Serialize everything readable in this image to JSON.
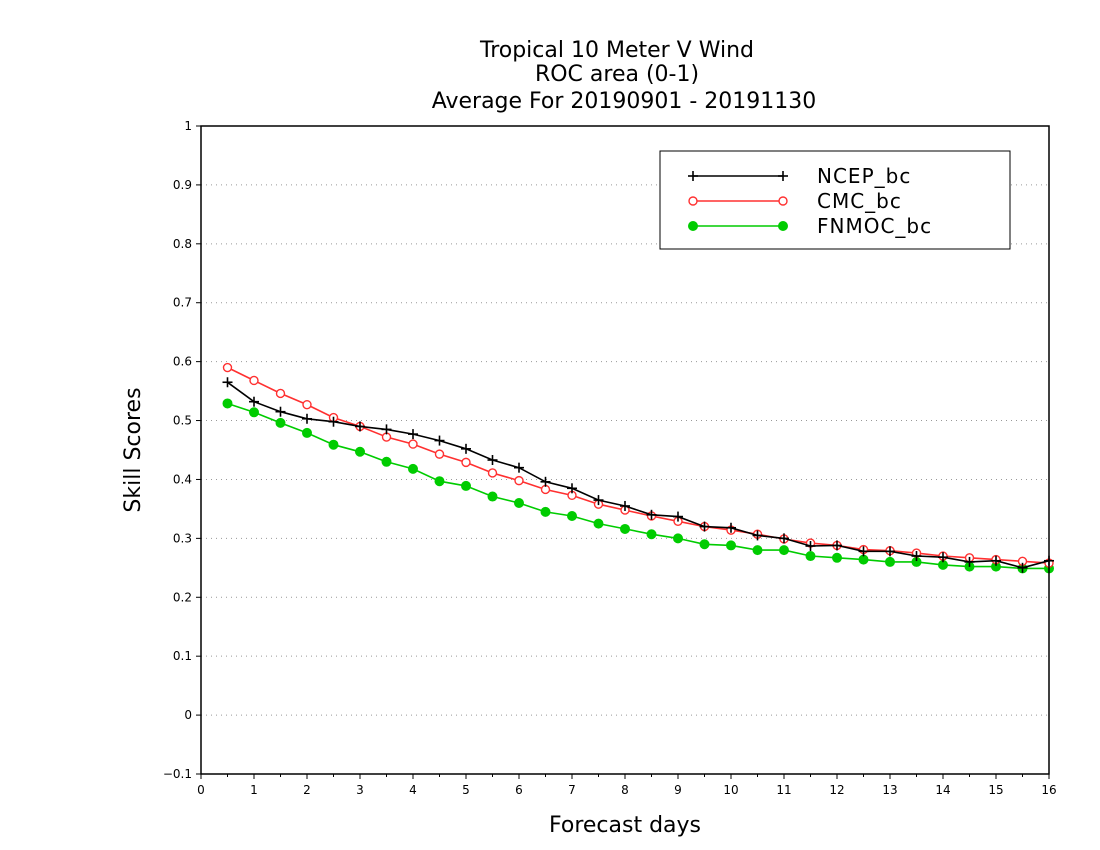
{
  "chart_data": {
    "type": "line",
    "title": "Tropical 10 Meter V Wind",
    "subtitle": "ROC area (0-1)",
    "subtitle2": "Average For 20190901 - 20191130",
    "xlabel": "Forecast days",
    "ylabel": "Skill Scores",
    "xlim": [
      0,
      16
    ],
    "ylim": [
      -0.1,
      1
    ],
    "x_ticks": [
      "0",
      "1",
      "2",
      "3",
      "4",
      "5",
      "6",
      "7",
      "8",
      "9",
      "10",
      "11",
      "12",
      "13",
      "14",
      "15",
      "16"
    ],
    "y_ticks": [
      "−0.1",
      "0",
      "0.1",
      "0.2",
      "0.3",
      "0.4",
      "0.5",
      "0.6",
      "0.7",
      "0.8",
      "0.9",
      "1"
    ],
    "grid": true,
    "legend_position": "top-right",
    "x": [
      0.5,
      1,
      1.5,
      2,
      2.5,
      3,
      3.5,
      4,
      4.5,
      5,
      5.5,
      6,
      6.5,
      7,
      7.5,
      8,
      8.5,
      9,
      9.5,
      10,
      10.5,
      11,
      11.5,
      12,
      12.5,
      13,
      13.5,
      14,
      14.5,
      15,
      15.5,
      16
    ],
    "series": [
      {
        "name": "NCEP_bc",
        "color": "#000000",
        "marker": "plus",
        "values": [
          0.565,
          0.532,
          0.515,
          0.503,
          0.498,
          0.49,
          0.485,
          0.477,
          0.466,
          0.452,
          0.433,
          0.42,
          0.396,
          0.385,
          0.365,
          0.355,
          0.34,
          0.337,
          0.32,
          0.318,
          0.305,
          0.3,
          0.287,
          0.288,
          0.278,
          0.278,
          0.27,
          0.268,
          0.26,
          0.262,
          0.25,
          0.262
        ]
      },
      {
        "name": "CMC_bc",
        "color": "#ff3030",
        "marker": "open-circle",
        "values": [
          0.59,
          0.568,
          0.546,
          0.527,
          0.505,
          0.49,
          0.472,
          0.46,
          0.443,
          0.429,
          0.411,
          0.398,
          0.383,
          0.373,
          0.358,
          0.348,
          0.338,
          0.329,
          0.32,
          0.314,
          0.307,
          0.299,
          0.292,
          0.288,
          0.281,
          0.279,
          0.275,
          0.27,
          0.267,
          0.264,
          0.261,
          0.258
        ]
      },
      {
        "name": "FNMOC_bc",
        "color": "#00cc00",
        "marker": "filled-circle",
        "values": [
          0.529,
          0.514,
          0.496,
          0.479,
          0.459,
          0.447,
          0.43,
          0.418,
          0.397,
          0.389,
          0.371,
          0.36,
          0.345,
          0.338,
          0.325,
          0.316,
          0.307,
          0.3,
          0.29,
          0.288,
          0.28,
          0.28,
          0.27,
          0.267,
          0.264,
          0.26,
          0.26,
          0.255,
          0.252,
          0.252,
          0.249,
          0.249
        ]
      }
    ]
  }
}
